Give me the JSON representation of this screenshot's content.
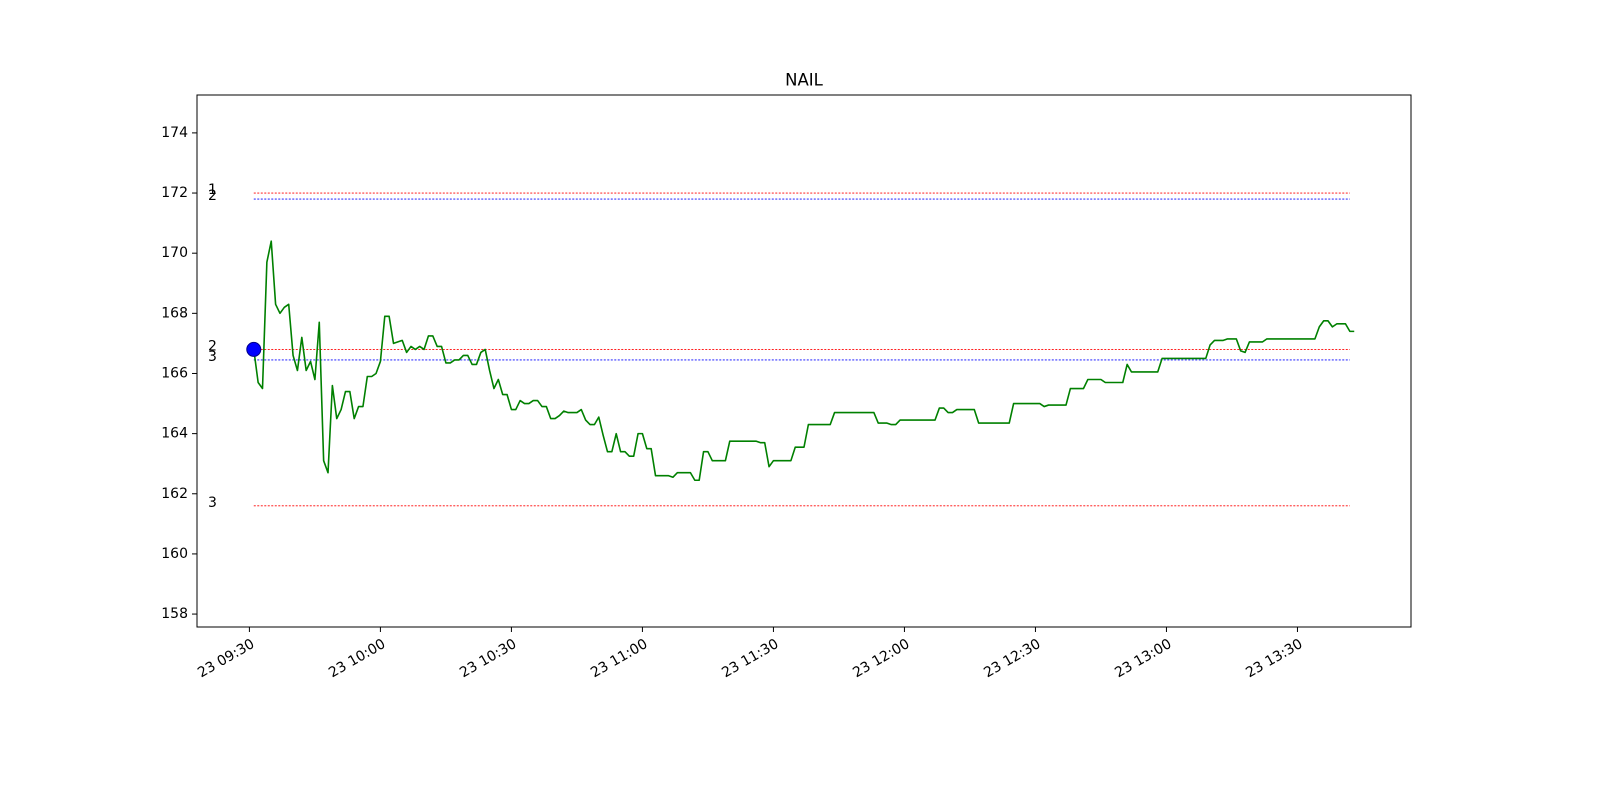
{
  "chart_data": {
    "type": "line",
    "title": "NAIL",
    "xlim": [
      "23 09:18",
      "23 13:56"
    ],
    "xticks": [
      "23 09:30",
      "23 10:00",
      "23 10:30",
      "23 11:00",
      "23 11:30",
      "23 12:00",
      "23 12:30",
      "23 13:00",
      "23 13:30"
    ],
    "ylim": [
      157.57,
      175.26
    ],
    "yticks": [
      158,
      160,
      162,
      164,
      166,
      168,
      170,
      172,
      174
    ],
    "grid": false,
    "series": [
      {
        "color": "#008000",
        "x": [
          "23 09:31",
          "23 09:32",
          "23 09:33",
          "23 09:34",
          "23 09:35",
          "23 09:36",
          "23 09:37",
          "23 09:38",
          "23 09:39",
          "23 09:40",
          "23 09:41",
          "23 09:42",
          "23 09:43",
          "23 09:44",
          "23 09:45",
          "23 09:46",
          "23 09:47",
          "23 09:48",
          "23 09:49",
          "23 09:50",
          "23 09:51",
          "23 09:52",
          "23 09:53",
          "23 09:54",
          "23 09:55",
          "23 09:56",
          "23 09:57",
          "23 09:58",
          "23 09:59",
          "23 10:00",
          "23 10:01",
          "23 10:02",
          "23 10:03",
          "23 10:05",
          "23 10:06",
          "23 10:07",
          "23 10:08",
          "23 10:09",
          "23 10:10",
          "23 10:11",
          "23 10:12",
          "23 10:13",
          "23 10:14",
          "23 10:15",
          "23 10:16",
          "23 10:17",
          "23 10:18",
          "23 10:19",
          "23 10:20",
          "23 10:21",
          "23 10:22",
          "23 10:23",
          "23 10:24",
          "23 10:25",
          "23 10:26",
          "23 10:27",
          "23 10:28",
          "23 10:29",
          "23 10:30",
          "23 10:31",
          "23 10:32",
          "23 10:33",
          "23 10:34",
          "23 10:35",
          "23 10:36",
          "23 10:37",
          "23 10:38",
          "23 10:39",
          "23 10:40",
          "23 10:41",
          "23 10:42",
          "23 10:43",
          "23 10:45",
          "23 10:46",
          "23 10:47",
          "23 10:48",
          "23 10:49",
          "23 10:50",
          "23 10:51",
          "23 10:52",
          "23 10:53",
          "23 10:54",
          "23 10:55",
          "23 10:56",
          "23 10:57",
          "23 10:58",
          "23 10:59",
          "23 11:00",
          "23 11:01",
          "23 11:02",
          "23 11:03",
          "23 11:06",
          "23 11:07",
          "23 11:08",
          "23 11:11",
          "23 11:12",
          "23 11:13",
          "23 11:14",
          "23 11:15",
          "23 11:16",
          "23 11:19",
          "23 11:20",
          "23 11:26",
          "23 11:27",
          "23 11:28",
          "23 11:29",
          "23 11:30",
          "23 11:34",
          "23 11:35",
          "23 11:37",
          "23 11:38",
          "23 11:43",
          "23 11:44",
          "23 11:53",
          "23 11:54",
          "23 11:56",
          "23 11:57",
          "23 11:58",
          "23 11:59",
          "23 12:07",
          "23 12:08",
          "23 12:09",
          "23 12:10",
          "23 12:11",
          "23 12:12",
          "23 12:16",
          "23 12:17",
          "23 12:24",
          "23 12:25",
          "23 12:31",
          "23 12:32",
          "23 12:33",
          "23 12:37",
          "23 12:38",
          "23 12:41",
          "23 12:42",
          "23 12:45",
          "23 12:46",
          "23 12:50",
          "23 12:51",
          "23 12:52",
          "23 12:58",
          "23 12:59",
          "23 13:09",
          "23 13:10",
          "23 13:11",
          "23 13:13",
          "23 13:14",
          "23 13:16",
          "23 13:17",
          "23 13:18",
          "23 13:19",
          "23 13:22",
          "23 13:23",
          "23 13:34",
          "23 13:35",
          "23 13:36",
          "23 13:37",
          "23 13:38",
          "23 13:39",
          "23 13:41",
          "23 13:42",
          "23 13:43"
        ],
        "values": [
          166.8,
          165.7,
          165.5,
          169.7,
          170.4,
          168.3,
          168.0,
          168.2,
          168.3,
          166.6,
          166.1,
          167.2,
          166.1,
          166.4,
          165.8,
          167.7,
          163.1,
          162.7,
          165.6,
          164.5,
          164.8,
          165.4,
          165.4,
          164.5,
          164.9,
          164.9,
          165.9,
          165.9,
          166.0,
          166.4,
          167.9,
          167.9,
          167.0,
          167.1,
          166.7,
          166.9,
          166.8,
          166.9,
          166.8,
          167.25,
          167.25,
          166.9,
          166.9,
          166.35,
          166.35,
          166.45,
          166.45,
          166.6,
          166.6,
          166.3,
          166.3,
          166.7,
          166.8,
          166.1,
          165.5,
          165.8,
          165.3,
          165.3,
          164.8,
          164.8,
          165.1,
          165.0,
          165.0,
          165.1,
          165.1,
          164.9,
          164.9,
          164.5,
          164.5,
          164.6,
          164.75,
          164.7,
          164.7,
          164.8,
          164.45,
          164.3,
          164.3,
          164.55,
          163.95,
          163.4,
          163.4,
          164.0,
          163.4,
          163.4,
          163.25,
          163.25,
          164.0,
          164.0,
          163.5,
          163.5,
          162.6,
          162.6,
          162.55,
          162.7,
          162.7,
          162.45,
          162.45,
          163.4,
          163.4,
          163.1,
          163.1,
          163.75,
          163.75,
          163.7,
          163.7,
          162.9,
          163.1,
          163.1,
          163.55,
          163.55,
          164.3,
          164.3,
          164.7,
          164.7,
          164.35,
          164.35,
          164.3,
          164.3,
          164.45,
          164.45,
          164.85,
          164.85,
          164.7,
          164.7,
          164.8,
          164.8,
          164.35,
          164.35,
          165.0,
          165.0,
          164.9,
          164.95,
          164.95,
          165.5,
          165.5,
          165.8,
          165.8,
          165.7,
          165.7,
          166.3,
          166.05,
          166.05,
          166.5,
          166.5,
          166.95,
          167.1,
          167.1,
          167.15,
          167.15,
          166.75,
          166.7,
          167.05,
          167.05,
          167.15,
          167.15,
          167.55,
          167.75,
          167.75,
          167.55,
          167.65,
          167.65,
          167.4,
          167.4
        ]
      }
    ],
    "hlines": [
      {
        "label": "1",
        "value": 172.0,
        "color": "#ff0000",
        "xmin": "23 09:31",
        "xmax": "23 13:42"
      },
      {
        "label": "2",
        "value": 171.8,
        "color": "#0000ff",
        "xmin": "23 09:31",
        "xmax": "23 13:42"
      },
      {
        "label": "2",
        "value": 166.8,
        "color": "#ff0000",
        "xmin": "23 09:31",
        "xmax": "23 13:42"
      },
      {
        "label": "3",
        "value": 166.45,
        "color": "#0000ff",
        "xmin": "23 09:31",
        "xmax": "23 13:42"
      },
      {
        "label": "3",
        "value": 161.6,
        "color": "#ff0000",
        "xmin": "23 09:31",
        "xmax": "23 13:42"
      }
    ],
    "markers": [
      {
        "x": "23 09:31",
        "y": 166.8,
        "color": "#0000ff"
      }
    ]
  }
}
